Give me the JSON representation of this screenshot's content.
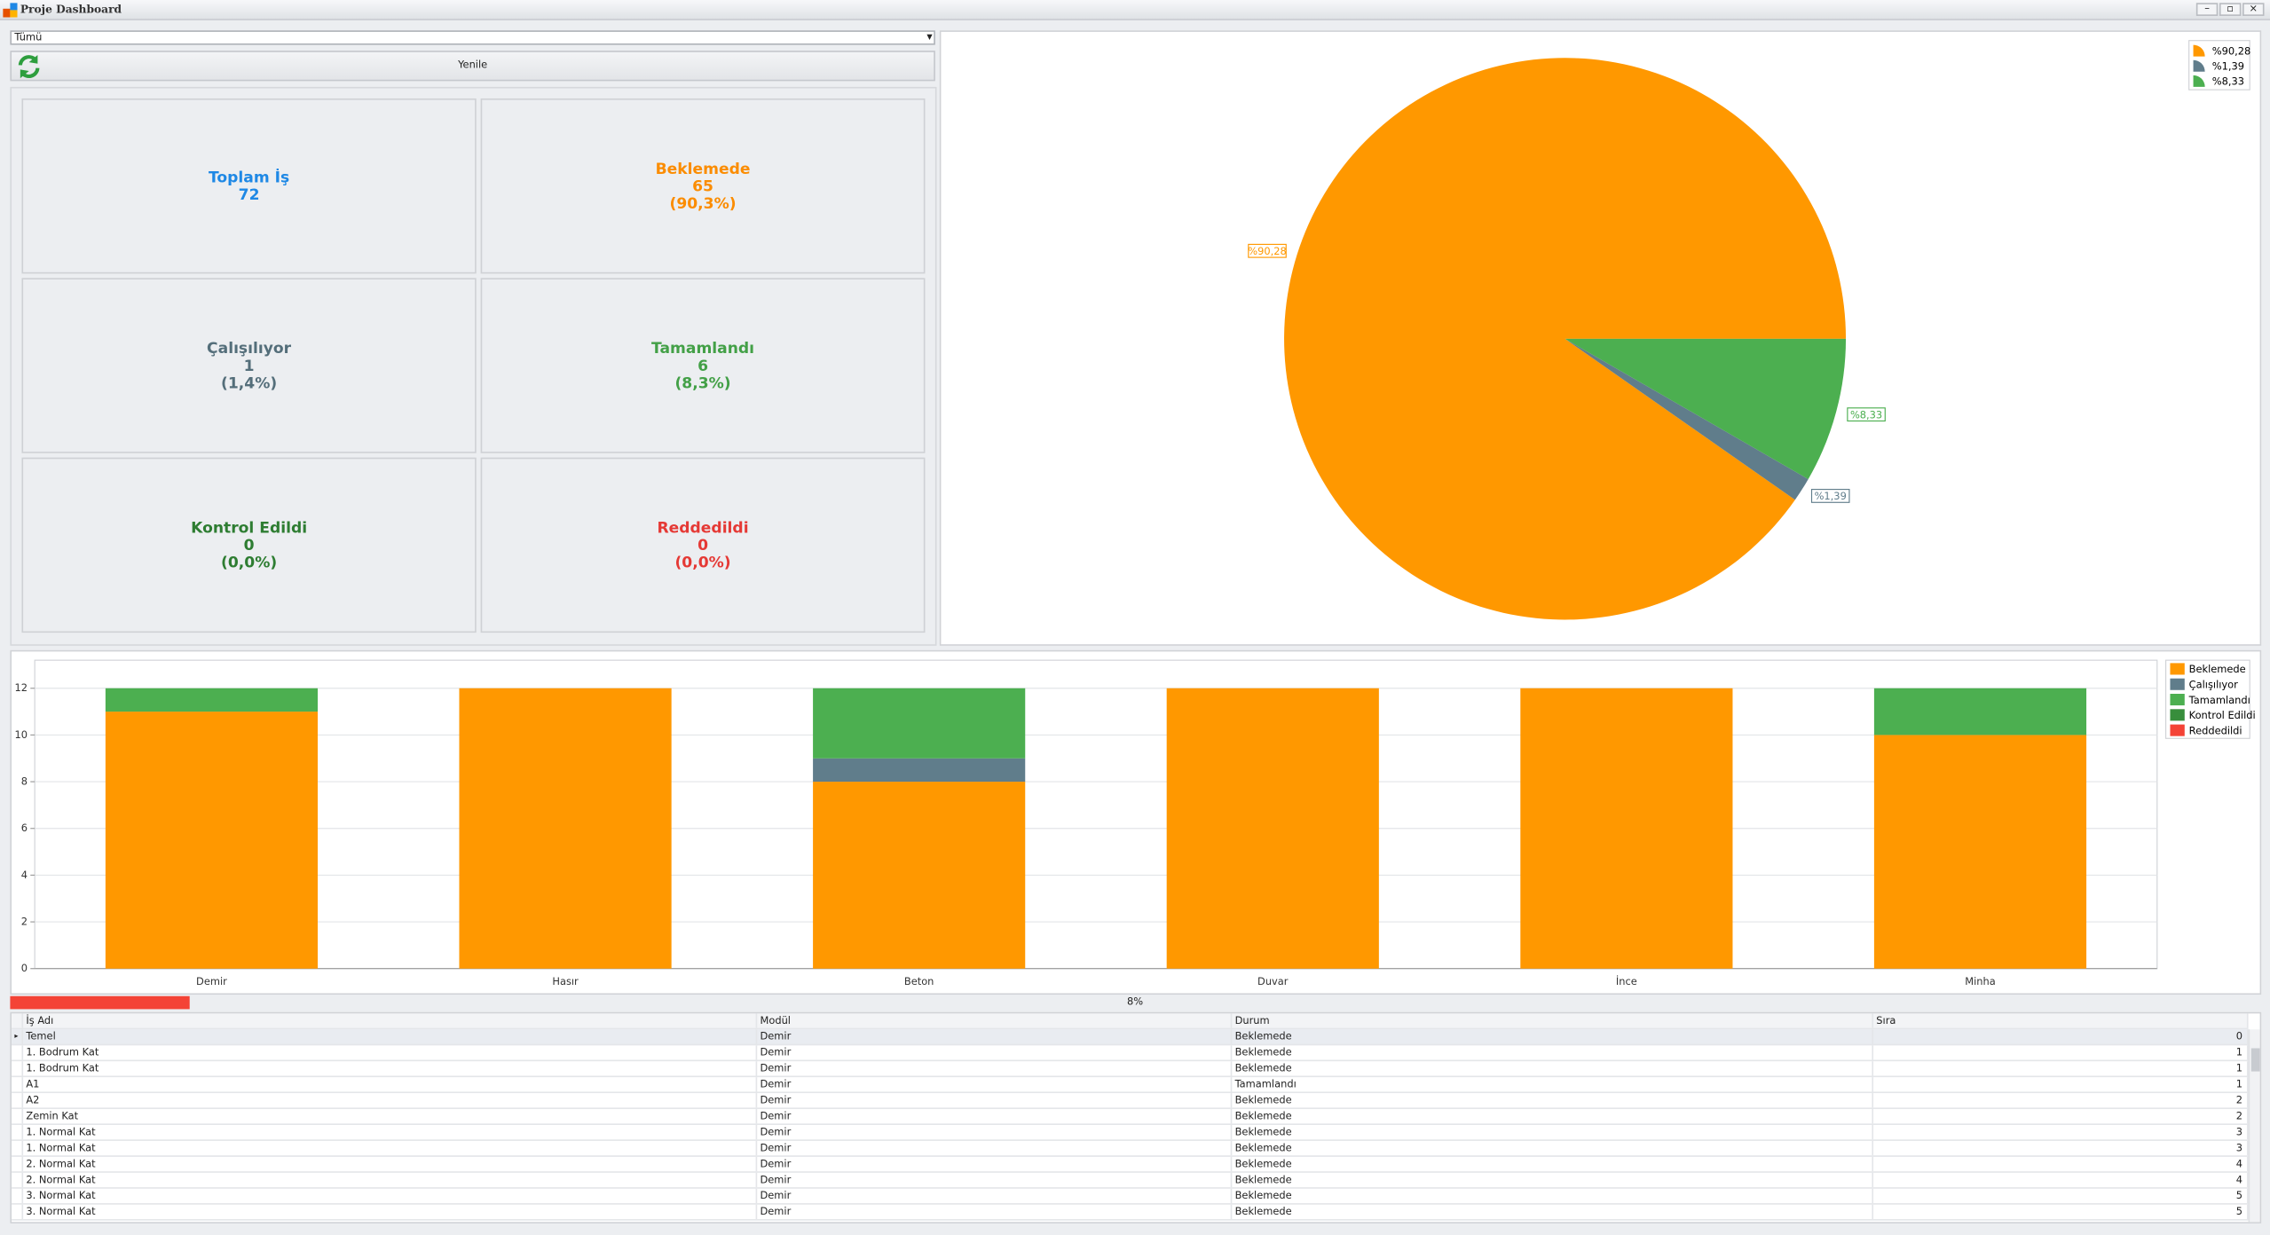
{
  "window": {
    "title": "Proje Dashboard"
  },
  "filter": "Tümü",
  "refresh_button": "Yenile",
  "cards": [
    {
      "title": "Toplam İş",
      "count": 72,
      "color": "#1e88e5"
    },
    {
      "title": "Beklemede",
      "count": 65,
      "percent": "(90,3%)",
      "color": "#fb8c00"
    },
    {
      "title": "Çalışılıyor",
      "count": 1,
      "percent": "(1,4%)",
      "color": "#546e7a"
    },
    {
      "title": "Tamamlandı",
      "count": 6,
      "percent": "(8,3%)",
      "color": "#43a047"
    },
    {
      "title": "Kontrol Edildi",
      "count": 0,
      "percent": "(0,0%)",
      "color": "#2e7d32"
    },
    {
      "title": "Reddedildi",
      "count": 0,
      "percent": "(0,0%)",
      "color": "#e53935"
    }
  ],
  "chart_data": [
    {
      "type": "pie",
      "categories": [
        "%90,28",
        "%1,39",
        "%8,33"
      ],
      "values": [
        90.28,
        1.39,
        8.33
      ],
      "value_labels": [
        "%90,28",
        "%1,39",
        "%8,33"
      ],
      "colors": [
        "#ff9800",
        "#607d8b",
        "#4caf50"
      ],
      "legend": "top-right"
    },
    {
      "type": "bar",
      "stacked": true,
      "categories": [
        "Demir",
        "Hasır",
        "Beton",
        "Duvar",
        "İnce",
        "Minha"
      ],
      "series": [
        {
          "name": "Beklemede",
          "color": "#ff9800",
          "values": [
            11,
            12,
            8,
            12,
            12,
            10
          ]
        },
        {
          "name": "Çalışılıyor",
          "color": "#607d8b",
          "values": [
            0,
            0,
            1,
            0,
            0,
            0
          ]
        },
        {
          "name": "Tamamlandı",
          "color": "#4caf50",
          "values": [
            1,
            0,
            3,
            0,
            0,
            2
          ]
        },
        {
          "name": "Kontrol Edildi",
          "color": "#388e3c",
          "values": [
            0,
            0,
            0,
            0,
            0,
            0
          ]
        },
        {
          "name": "Reddedildi",
          "color": "#f44336",
          "values": [
            0,
            0,
            0,
            0,
            0,
            0
          ]
        }
      ],
      "ylim": [
        0,
        13.2
      ],
      "yticks": [
        0,
        2,
        4,
        6,
        8,
        10,
        12
      ],
      "grid": true,
      "legend": "right"
    }
  ],
  "progress": {
    "value": 8,
    "label": "8%",
    "color": "#f44336"
  },
  "table": {
    "columns": [
      "İş Adı",
      "Modül",
      "Durum",
      "Sıra"
    ],
    "rows": [
      [
        "Temel",
        "Demir",
        "Beklemede",
        0
      ],
      [
        "1. Bodrum Kat",
        "Demir",
        "Beklemede",
        1
      ],
      [
        "1. Bodrum Kat",
        "Demir",
        "Beklemede",
        1
      ],
      [
        "A1",
        "Demir",
        "Tamamlandı",
        1
      ],
      [
        "A2",
        "Demir",
        "Beklemede",
        2
      ],
      [
        "Zemin Kat",
        "Demir",
        "Beklemede",
        2
      ],
      [
        "1. Normal Kat",
        "Demir",
        "Beklemede",
        3
      ],
      [
        "1. Normal Kat",
        "Demir",
        "Beklemede",
        3
      ],
      [
        "2. Normal Kat",
        "Demir",
        "Beklemede",
        4
      ],
      [
        "2. Normal Kat",
        "Demir",
        "Beklemede",
        4
      ],
      [
        "3. Normal Kat",
        "Demir",
        "Beklemede",
        5
      ],
      [
        "3. Normal Kat",
        "Demir",
        "Beklemede",
        5
      ]
    ]
  }
}
